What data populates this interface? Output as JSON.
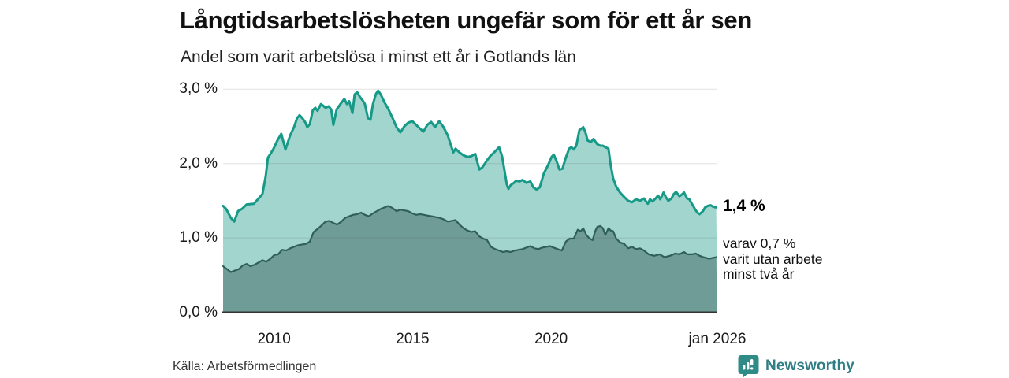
{
  "header": {
    "title": "Långtidsarbetslösheten ungefär som för ett år sen",
    "subtitle": "Andel som varit arbetslösa i minst ett år i Gotlands län"
  },
  "chart_data": {
    "type": "area",
    "title": "Långtidsarbetslösheten ungefär som för ett år sen",
    "subtitle": "Andel som varit arbetslösa i minst ett år i Gotlands län",
    "xlabel": "",
    "ylabel": "",
    "xlim": [
      2008.2,
      2026.04
    ],
    "ylim": [
      0,
      3.0
    ],
    "grid": true,
    "legend_position": "none",
    "y_ticks": [
      {
        "y": 0,
        "label": "0,0 %"
      },
      {
        "y": 1,
        "label": "1,0 %"
      },
      {
        "y": 2,
        "label": "2,0 %"
      },
      {
        "y": 3,
        "label": "3,0 %"
      }
    ],
    "x_ticks": [
      {
        "x": 2010.04,
        "label": "2010"
      },
      {
        "x": 2015.04,
        "label": "2015"
      },
      {
        "x": 2020.04,
        "label": "2020"
      },
      {
        "x": 2026.04,
        "label": "jan 2026"
      }
    ],
    "series": [
      {
        "fill": "#a2d5ce",
        "stroke": "#169a87",
        "width": 3,
        "points": [
          [
            2008.2,
            1.43
          ],
          [
            2008.31,
            1.39
          ],
          [
            2008.48,
            1.27
          ],
          [
            2008.6,
            1.22
          ],
          [
            2008.74,
            1.36
          ],
          [
            2008.88,
            1.39
          ],
          [
            2009.05,
            1.45
          ],
          [
            2009.31,
            1.46
          ],
          [
            2009.48,
            1.53
          ],
          [
            2009.62,
            1.59
          ],
          [
            2009.74,
            1.83
          ],
          [
            2009.82,
            2.08
          ],
          [
            2009.91,
            2.13
          ],
          [
            2010.02,
            2.2
          ],
          [
            2010.16,
            2.31
          ],
          [
            2010.3,
            2.4
          ],
          [
            2010.45,
            2.19
          ],
          [
            2010.62,
            2.38
          ],
          [
            2010.76,
            2.49
          ],
          [
            2010.87,
            2.61
          ],
          [
            2010.96,
            2.65
          ],
          [
            2011.04,
            2.62
          ],
          [
            2011.16,
            2.56
          ],
          [
            2011.24,
            2.49
          ],
          [
            2011.33,
            2.53
          ],
          [
            2011.44,
            2.72
          ],
          [
            2011.53,
            2.75
          ],
          [
            2011.61,
            2.71
          ],
          [
            2011.73,
            2.8
          ],
          [
            2011.81,
            2.78
          ],
          [
            2011.9,
            2.75
          ],
          [
            2012.01,
            2.77
          ],
          [
            2012.1,
            2.73
          ],
          [
            2012.18,
            2.52
          ],
          [
            2012.3,
            2.73
          ],
          [
            2012.38,
            2.77
          ],
          [
            2012.47,
            2.82
          ],
          [
            2012.58,
            2.87
          ],
          [
            2012.67,
            2.8
          ],
          [
            2012.75,
            2.84
          ],
          [
            2012.87,
            2.68
          ],
          [
            2012.95,
            2.93
          ],
          [
            2013.04,
            2.96
          ],
          [
            2013.15,
            2.89
          ],
          [
            2013.24,
            2.85
          ],
          [
            2013.32,
            2.8
          ],
          [
            2013.43,
            2.61
          ],
          [
            2013.52,
            2.59
          ],
          [
            2013.61,
            2.8
          ],
          [
            2013.72,
            2.94
          ],
          [
            2013.8,
            2.98
          ],
          [
            2013.89,
            2.93
          ],
          [
            2014.03,
            2.82
          ],
          [
            2014.17,
            2.73
          ],
          [
            2014.32,
            2.61
          ],
          [
            2014.46,
            2.49
          ],
          [
            2014.6,
            2.42
          ],
          [
            2014.74,
            2.5
          ],
          [
            2014.88,
            2.55
          ],
          [
            2015.03,
            2.57
          ],
          [
            2015.17,
            2.52
          ],
          [
            2015.31,
            2.47
          ],
          [
            2015.43,
            2.43
          ],
          [
            2015.57,
            2.52
          ],
          [
            2015.71,
            2.56
          ],
          [
            2015.85,
            2.49
          ],
          [
            2016.0,
            2.57
          ],
          [
            2016.14,
            2.5
          ],
          [
            2016.31,
            2.38
          ],
          [
            2016.42,
            2.25
          ],
          [
            2016.51,
            2.15
          ],
          [
            2016.59,
            2.2
          ],
          [
            2016.73,
            2.15
          ],
          [
            2016.88,
            2.11
          ],
          [
            2017.02,
            2.09
          ],
          [
            2017.16,
            2.1
          ],
          [
            2017.3,
            2.13
          ],
          [
            2017.45,
            1.92
          ],
          [
            2017.56,
            1.95
          ],
          [
            2017.7,
            2.03
          ],
          [
            2017.84,
            2.1
          ],
          [
            2018.01,
            2.16
          ],
          [
            2018.16,
            2.22
          ],
          [
            2018.27,
            2.1
          ],
          [
            2018.36,
            1.9
          ],
          [
            2018.44,
            1.72
          ],
          [
            2018.5,
            1.66
          ],
          [
            2018.58,
            1.71
          ],
          [
            2018.7,
            1.74
          ],
          [
            2018.78,
            1.77
          ],
          [
            2018.9,
            1.76
          ],
          [
            2019.01,
            1.78
          ],
          [
            2019.15,
            1.74
          ],
          [
            2019.29,
            1.76
          ],
          [
            2019.4,
            1.68
          ],
          [
            2019.52,
            1.65
          ],
          [
            2019.63,
            1.68
          ],
          [
            2019.78,
            1.87
          ],
          [
            2019.92,
            1.97
          ],
          [
            2020.06,
            2.09
          ],
          [
            2020.14,
            2.12
          ],
          [
            2020.25,
            2.02
          ],
          [
            2020.34,
            1.92
          ],
          [
            2020.45,
            1.93
          ],
          [
            2020.57,
            2.08
          ],
          [
            2020.69,
            2.2
          ],
          [
            2020.77,
            2.22
          ],
          [
            2020.86,
            2.19
          ],
          [
            2020.95,
            2.24
          ],
          [
            2021.06,
            2.45
          ],
          [
            2021.14,
            2.47
          ],
          [
            2021.2,
            2.49
          ],
          [
            2021.28,
            2.42
          ],
          [
            2021.36,
            2.31
          ],
          [
            2021.48,
            2.29
          ],
          [
            2021.57,
            2.33
          ],
          [
            2021.71,
            2.26
          ],
          [
            2021.82,
            2.24
          ],
          [
            2021.91,
            2.24
          ],
          [
            2022.0,
            2.22
          ],
          [
            2022.11,
            2.2
          ],
          [
            2022.19,
            1.98
          ],
          [
            2022.28,
            1.8
          ],
          [
            2022.39,
            1.69
          ],
          [
            2022.53,
            1.61
          ],
          [
            2022.68,
            1.55
          ],
          [
            2022.82,
            1.5
          ],
          [
            2022.96,
            1.48
          ],
          [
            2023.1,
            1.52
          ],
          [
            2023.25,
            1.5
          ],
          [
            2023.39,
            1.53
          ],
          [
            2023.53,
            1.46
          ],
          [
            2023.61,
            1.52
          ],
          [
            2023.7,
            1.49
          ],
          [
            2023.81,
            1.53
          ],
          [
            2023.9,
            1.57
          ],
          [
            2023.98,
            1.52
          ],
          [
            2024.1,
            1.61
          ],
          [
            2024.18,
            1.55
          ],
          [
            2024.27,
            1.5
          ],
          [
            2024.38,
            1.53
          ],
          [
            2024.47,
            1.59
          ],
          [
            2024.55,
            1.62
          ],
          [
            2024.67,
            1.56
          ],
          [
            2024.75,
            1.58
          ],
          [
            2024.84,
            1.61
          ],
          [
            2024.95,
            1.53
          ],
          [
            2025.03,
            1.52
          ],
          [
            2025.12,
            1.46
          ],
          [
            2025.23,
            1.39
          ],
          [
            2025.32,
            1.34
          ],
          [
            2025.4,
            1.32
          ],
          [
            2025.52,
            1.36
          ],
          [
            2025.6,
            1.41
          ],
          [
            2025.69,
            1.43
          ],
          [
            2025.8,
            1.44
          ],
          [
            2025.89,
            1.42
          ],
          [
            2026.0,
            1.41
          ]
        ]
      },
      {
        "fill": "#6f9c97",
        "stroke": "#305f58",
        "width": 2.2,
        "points": [
          [
            2008.2,
            0.62
          ],
          [
            2008.34,
            0.58
          ],
          [
            2008.48,
            0.54
          ],
          [
            2008.62,
            0.56
          ],
          [
            2008.77,
            0.58
          ],
          [
            2008.91,
            0.63
          ],
          [
            2009.05,
            0.65
          ],
          [
            2009.19,
            0.62
          ],
          [
            2009.34,
            0.64
          ],
          [
            2009.48,
            0.67
          ],
          [
            2009.62,
            0.7
          ],
          [
            2009.76,
            0.68
          ],
          [
            2009.91,
            0.72
          ],
          [
            2010.05,
            0.77
          ],
          [
            2010.19,
            0.78
          ],
          [
            2010.33,
            0.84
          ],
          [
            2010.48,
            0.83
          ],
          [
            2010.62,
            0.86
          ],
          [
            2010.76,
            0.88
          ],
          [
            2010.9,
            0.9
          ],
          [
            2011.04,
            0.91
          ],
          [
            2011.19,
            0.92
          ],
          [
            2011.33,
            0.95
          ],
          [
            2011.47,
            1.08
          ],
          [
            2011.61,
            1.12
          ],
          [
            2011.76,
            1.17
          ],
          [
            2011.9,
            1.22
          ],
          [
            2012.04,
            1.23
          ],
          [
            2012.18,
            1.2
          ],
          [
            2012.32,
            1.18
          ],
          [
            2012.47,
            1.22
          ],
          [
            2012.61,
            1.27
          ],
          [
            2012.75,
            1.29
          ],
          [
            2012.89,
            1.31
          ],
          [
            2013.04,
            1.32
          ],
          [
            2013.18,
            1.34
          ],
          [
            2013.32,
            1.31
          ],
          [
            2013.46,
            1.29
          ],
          [
            2013.61,
            1.33
          ],
          [
            2013.75,
            1.36
          ],
          [
            2013.89,
            1.39
          ],
          [
            2014.03,
            1.41
          ],
          [
            2014.17,
            1.43
          ],
          [
            2014.32,
            1.4
          ],
          [
            2014.46,
            1.36
          ],
          [
            2014.6,
            1.38
          ],
          [
            2014.74,
            1.37
          ],
          [
            2014.88,
            1.36
          ],
          [
            2015.03,
            1.33
          ],
          [
            2015.17,
            1.31
          ],
          [
            2015.31,
            1.32
          ],
          [
            2015.45,
            1.31
          ],
          [
            2015.59,
            1.3
          ],
          [
            2015.74,
            1.29
          ],
          [
            2015.88,
            1.28
          ],
          [
            2016.02,
            1.27
          ],
          [
            2016.16,
            1.25
          ],
          [
            2016.31,
            1.22
          ],
          [
            2016.45,
            1.23
          ],
          [
            2016.59,
            1.24
          ],
          [
            2016.73,
            1.18
          ],
          [
            2016.88,
            1.13
          ],
          [
            2017.02,
            1.1
          ],
          [
            2017.16,
            1.08
          ],
          [
            2017.3,
            1.09
          ],
          [
            2017.45,
            1.02
          ],
          [
            2017.59,
            0.99
          ],
          [
            2017.73,
            0.97
          ],
          [
            2017.87,
            0.88
          ],
          [
            2018.02,
            0.85
          ],
          [
            2018.16,
            0.83
          ],
          [
            2018.3,
            0.81
          ],
          [
            2018.44,
            0.82
          ],
          [
            2018.58,
            0.81
          ],
          [
            2018.73,
            0.83
          ],
          [
            2018.87,
            0.84
          ],
          [
            2019.01,
            0.85
          ],
          [
            2019.15,
            0.87
          ],
          [
            2019.29,
            0.89
          ],
          [
            2019.44,
            0.86
          ],
          [
            2019.58,
            0.85
          ],
          [
            2019.72,
            0.87
          ],
          [
            2019.86,
            0.88
          ],
          [
            2020.0,
            0.89
          ],
          [
            2020.06,
            0.88
          ],
          [
            2020.2,
            0.86
          ],
          [
            2020.34,
            0.84
          ],
          [
            2020.43,
            0.83
          ],
          [
            2020.57,
            0.95
          ],
          [
            2020.71,
            0.99
          ],
          [
            2020.86,
            0.99
          ],
          [
            2021.0,
            1.11
          ],
          [
            2021.11,
            1.09
          ],
          [
            2021.2,
            1.13
          ],
          [
            2021.31,
            1.04
          ],
          [
            2021.43,
            0.99
          ],
          [
            2021.54,
            0.97
          ],
          [
            2021.63,
            1.09
          ],
          [
            2021.71,
            1.15
          ],
          [
            2021.82,
            1.16
          ],
          [
            2021.91,
            1.13
          ],
          [
            2022.0,
            1.04
          ],
          [
            2022.11,
            1.13
          ],
          [
            2022.19,
            1.1
          ],
          [
            2022.28,
            1.09
          ],
          [
            2022.39,
            0.99
          ],
          [
            2022.53,
            0.94
          ],
          [
            2022.68,
            0.92
          ],
          [
            2022.82,
            0.86
          ],
          [
            2022.96,
            0.88
          ],
          [
            2023.1,
            0.85
          ],
          [
            2023.25,
            0.86
          ],
          [
            2023.39,
            0.83
          ],
          [
            2023.56,
            0.78
          ],
          [
            2023.76,
            0.76
          ],
          [
            2023.96,
            0.78
          ],
          [
            2024.13,
            0.74
          ],
          [
            2024.33,
            0.76
          ],
          [
            2024.53,
            0.79
          ],
          [
            2024.67,
            0.78
          ],
          [
            2024.84,
            0.81
          ],
          [
            2024.95,
            0.78
          ],
          [
            2025.12,
            0.78
          ],
          [
            2025.26,
            0.79
          ],
          [
            2025.4,
            0.76
          ],
          [
            2025.54,
            0.74
          ],
          [
            2025.74,
            0.72
          ],
          [
            2026.0,
            0.74
          ]
        ]
      }
    ],
    "annotations": {
      "end_value": "1,4 %",
      "sub_annotation": "varav 0,7 %\nvarit utan arbete\nminst två år"
    }
  },
  "footer": {
    "source": "Källa: Arbetsförmedlingen",
    "brand": "Newsworthy",
    "brand_color": "#2f7e84",
    "brand_icon": "newsworthy-chart-bubble-icon",
    "brand_icon_color": "#2e8b85"
  }
}
